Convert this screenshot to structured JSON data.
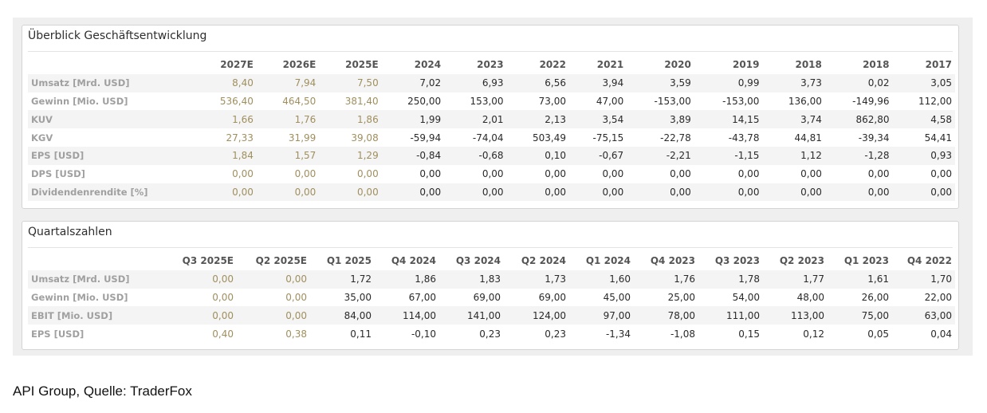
{
  "annual": {
    "title": "Überblick Geschäftsentwicklung",
    "columns": [
      "2027E",
      "2026E",
      "2025E",
      "2024",
      "2023",
      "2022",
      "2021",
      "2020",
      "2019",
      "2018",
      "2018",
      "2017"
    ],
    "estimate_count": 3,
    "rows": [
      {
        "label": "Umsatz [Mrd. USD]",
        "values": [
          "8,40",
          "7,94",
          "7,50",
          "7,02",
          "6,93",
          "6,56",
          "3,94",
          "3,59",
          "0,99",
          "3,73",
          "0,02",
          "3,05"
        ]
      },
      {
        "label": "Gewinn [Mio. USD]",
        "values": [
          "536,40",
          "464,50",
          "381,40",
          "250,00",
          "153,00",
          "73,00",
          "47,00",
          "-153,00",
          "-153,00",
          "136,00",
          "-149,96",
          "112,00"
        ]
      },
      {
        "label": "KUV",
        "values": [
          "1,66",
          "1,76",
          "1,86",
          "1,99",
          "2,01",
          "2,13",
          "3,54",
          "3,89",
          "14,15",
          "3,74",
          "862,80",
          "4,58"
        ]
      },
      {
        "label": "KGV",
        "values": [
          "27,33",
          "31,99",
          "39,08",
          "-59,94",
          "-74,04",
          "503,49",
          "-75,15",
          "-22,78",
          "-43,78",
          "44,81",
          "-39,34",
          "54,41"
        ]
      },
      {
        "label": "EPS [USD]",
        "values": [
          "1,84",
          "1,57",
          "1,29",
          "-0,84",
          "-0,68",
          "0,10",
          "-0,67",
          "-2,21",
          "-1,15",
          "1,12",
          "-1,28",
          "0,93"
        ]
      },
      {
        "label": "DPS [USD]",
        "values": [
          "0,00",
          "0,00",
          "0,00",
          "0,00",
          "0,00",
          "0,00",
          "0,00",
          "0,00",
          "0,00",
          "0,00",
          "0,00",
          "0,00"
        ]
      },
      {
        "label": "Dividendenrendite [%]",
        "values": [
          "0,00",
          "0,00",
          "0,00",
          "0,00",
          "0,00",
          "0,00",
          "0,00",
          "0,00",
          "0,00",
          "0,00",
          "0,00",
          "0,00"
        ]
      }
    ]
  },
  "quarterly": {
    "title": "Quartalszahlen",
    "columns": [
      "Q3 2025E",
      "Q2 2025E",
      "Q1 2025",
      "Q4 2024",
      "Q3 2024",
      "Q2 2024",
      "Q1 2024",
      "Q4 2023",
      "Q3 2023",
      "Q2 2023",
      "Q1 2023",
      "Q4 2022"
    ],
    "estimate_count": 2,
    "rows": [
      {
        "label": "Umsatz [Mrd. USD]",
        "values": [
          "0,00",
          "0,00",
          "1,72",
          "1,86",
          "1,83",
          "1,73",
          "1,60",
          "1,76",
          "1,78",
          "1,77",
          "1,61",
          "1,70"
        ]
      },
      {
        "label": "Gewinn [Mio. USD]",
        "values": [
          "0,00",
          "0,00",
          "35,00",
          "67,00",
          "69,00",
          "69,00",
          "45,00",
          "25,00",
          "54,00",
          "48,00",
          "26,00",
          "22,00"
        ]
      },
      {
        "label": "EBIT [Mio. USD]",
        "values": [
          "0,00",
          "0,00",
          "84,00",
          "114,00",
          "141,00",
          "124,00",
          "97,00",
          "78,00",
          "111,00",
          "113,00",
          "75,00",
          "63,00"
        ]
      },
      {
        "label": "EPS [USD]",
        "values": [
          "0,40",
          "0,38",
          "0,11",
          "-0,10",
          "0,23",
          "0,23",
          "-1,34",
          "-1,08",
          "0,15",
          "0,12",
          "0,05",
          "0,04"
        ]
      }
    ]
  },
  "caption": "API Group, Quelle: TraderFox",
  "colors": {
    "estimate": "#a08f5e",
    "actual": "#2a2a2a",
    "label": "#a0a0a0",
    "stripe": "#f4f4f4"
  },
  "chart_data": [
    {
      "type": "table",
      "title": "Überblick Geschäftsentwicklung",
      "columns": [
        "2027E",
        "2026E",
        "2025E",
        "2024",
        "2023",
        "2022",
        "2021",
        "2020",
        "2019",
        "2018",
        "2018",
        "2017"
      ],
      "rows": {
        "Umsatz [Mrd. USD]": [
          8.4,
          7.94,
          7.5,
          7.02,
          6.93,
          6.56,
          3.94,
          3.59,
          0.99,
          3.73,
          0.02,
          3.05
        ],
        "Gewinn [Mio. USD]": [
          536.4,
          464.5,
          381.4,
          250.0,
          153.0,
          73.0,
          47.0,
          -153.0,
          -153.0,
          136.0,
          -149.96,
          112.0
        ],
        "KUV": [
          1.66,
          1.76,
          1.86,
          1.99,
          2.01,
          2.13,
          3.54,
          3.89,
          14.15,
          3.74,
          862.8,
          4.58
        ],
        "KGV": [
          27.33,
          31.99,
          39.08,
          -59.94,
          -74.04,
          503.49,
          -75.15,
          -22.78,
          -43.78,
          44.81,
          -39.34,
          54.41
        ],
        "EPS [USD]": [
          1.84,
          1.57,
          1.29,
          -0.84,
          -0.68,
          0.1,
          -0.67,
          -2.21,
          -1.15,
          1.12,
          -1.28,
          0.93
        ],
        "DPS [USD]": [
          0,
          0,
          0,
          0,
          0,
          0,
          0,
          0,
          0,
          0,
          0,
          0
        ],
        "Dividendenrendite [%]": [
          0,
          0,
          0,
          0,
          0,
          0,
          0,
          0,
          0,
          0,
          0,
          0
        ]
      }
    },
    {
      "type": "table",
      "title": "Quartalszahlen",
      "columns": [
        "Q3 2025E",
        "Q2 2025E",
        "Q1 2025",
        "Q4 2024",
        "Q3 2024",
        "Q2 2024",
        "Q1 2024",
        "Q4 2023",
        "Q3 2023",
        "Q2 2023",
        "Q1 2023",
        "Q4 2022"
      ],
      "rows": {
        "Umsatz [Mrd. USD]": [
          0,
          0,
          1.72,
          1.86,
          1.83,
          1.73,
          1.6,
          1.76,
          1.78,
          1.77,
          1.61,
          1.7
        ],
        "Gewinn [Mio. USD]": [
          0,
          0,
          35.0,
          67.0,
          69.0,
          69.0,
          45.0,
          25.0,
          54.0,
          48.0,
          26.0,
          22.0
        ],
        "EBIT [Mio. USD]": [
          0,
          0,
          84.0,
          114.0,
          141.0,
          124.0,
          97.0,
          78.0,
          111.0,
          113.0,
          75.0,
          63.0
        ],
        "EPS [USD]": [
          0.4,
          0.38,
          0.11,
          -0.1,
          0.23,
          0.23,
          -1.34,
          -1.08,
          0.15,
          0.12,
          0.05,
          0.04
        ]
      }
    }
  ]
}
